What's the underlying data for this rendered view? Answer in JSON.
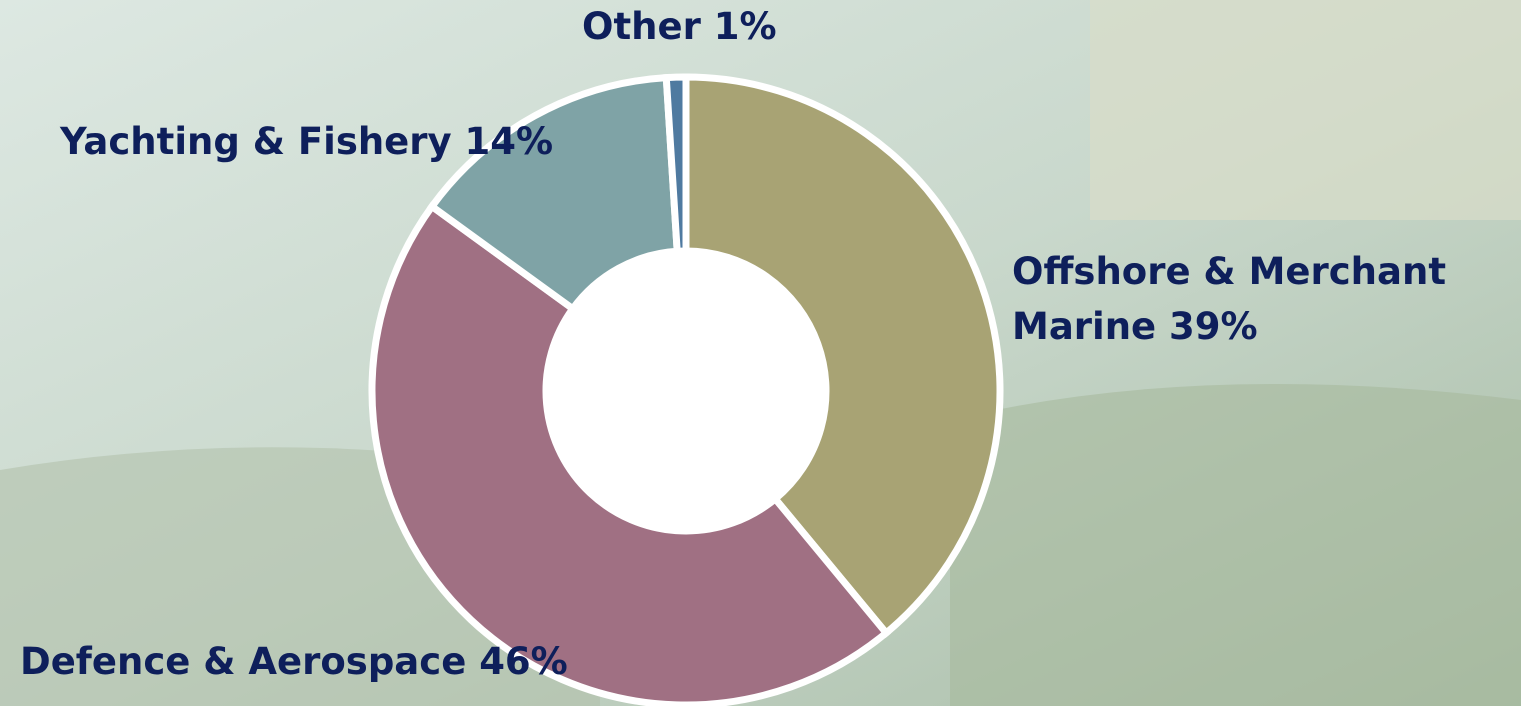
{
  "chart_data": {
    "type": "donut",
    "categories": [
      "Offshore & Merchant Marine",
      "Defence & Aerospace",
      "Yachting & Fishery",
      "Other"
    ],
    "values": [
      39,
      46,
      14,
      1
    ],
    "value_labels": [
      "39%",
      "46%",
      "14%",
      "1%"
    ],
    "colors": [
      "#a8a374",
      "#a07083",
      "#7fa3a6",
      "#4f7aa0"
    ]
  }
}
